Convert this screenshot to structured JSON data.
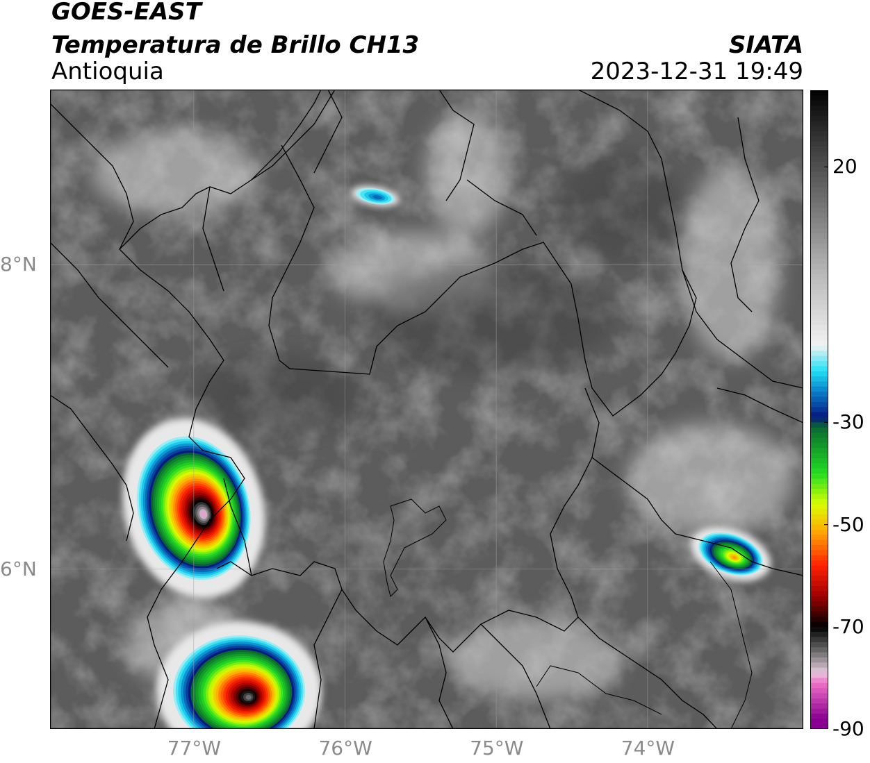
{
  "header": {
    "satellite": "GOES-EAST",
    "product": "Temperatura de Brillo CH13",
    "region": "Antioquia",
    "org": "SIATA",
    "datetime": "2023-12-31 19:49"
  },
  "map": {
    "lon_range": [
      -77.95,
      -72.97
    ],
    "lat_range": [
      4.95,
      9.15
    ],
    "lon_ticks": [
      {
        "value": -77,
        "label": "77°W"
      },
      {
        "value": -76,
        "label": "76°W"
      },
      {
        "value": -75,
        "label": "75°W"
      },
      {
        "value": -74,
        "label": "74°W"
      }
    ],
    "lat_ticks": [
      {
        "value": 8,
        "label": "8°N"
      },
      {
        "value": 6,
        "label": "6°N"
      }
    ],
    "gridlines": true,
    "grid_color": "#a0a0a0",
    "background_gray": "#5c5c5c",
    "border_color": "#000000",
    "features": [
      "coastline",
      "country-border",
      "department-borders",
      "municipal-borders"
    ],
    "storm_cells": [
      {
        "name": "western-convective-cell",
        "center": [
          -77.0,
          6.4
        ],
        "min_temp": -80
      },
      {
        "name": "southwestern-convective-cell",
        "center": [
          -76.7,
          5.2
        ],
        "min_temp": -75
      },
      {
        "name": "eastern-cell",
        "center": [
          -73.45,
          6.1
        ],
        "min_temp": -52
      },
      {
        "name": "northern-cold-patch",
        "center": [
          -75.8,
          8.45
        ],
        "min_temp": -25
      }
    ]
  },
  "colorbar": {
    "min": -90,
    "max": 35,
    "ticks": [
      {
        "value": 20,
        "label": "20"
      },
      {
        "value": -30,
        "label": "-30"
      },
      {
        "value": -50,
        "label": "-50"
      },
      {
        "value": -70,
        "label": "-70"
      },
      {
        "value": -90,
        "label": "-90"
      }
    ],
    "stops": [
      {
        "t": 35,
        "color": "#000000"
      },
      {
        "t": 25,
        "color": "#383838"
      },
      {
        "t": 10,
        "color": "#808080"
      },
      {
        "t": 0,
        "color": "#b4b4b4"
      },
      {
        "t": -15,
        "color": "#f2f2f2"
      },
      {
        "t": -20,
        "color": "#1ee0f5"
      },
      {
        "t": -24,
        "color": "#0a7ec8"
      },
      {
        "t": -29,
        "color": "#061880"
      },
      {
        "t": -31,
        "color": "#0a6a30"
      },
      {
        "t": -40,
        "color": "#22dd22"
      },
      {
        "t": -46,
        "color": "#d8ff00"
      },
      {
        "t": -51,
        "color": "#ffb000"
      },
      {
        "t": -58,
        "color": "#ff2200"
      },
      {
        "t": -64,
        "color": "#a00000"
      },
      {
        "t": -69,
        "color": "#1a0000"
      },
      {
        "t": -70,
        "color": "#000000"
      },
      {
        "t": -75,
        "color": "#707070"
      },
      {
        "t": -79,
        "color": "#e6c8dc"
      },
      {
        "t": -81,
        "color": "#f070c8"
      },
      {
        "t": -88,
        "color": "#8a0090"
      },
      {
        "t": -89.9,
        "color": "#8a0090"
      },
      {
        "t": -90,
        "color": "#ffffff"
      }
    ]
  }
}
